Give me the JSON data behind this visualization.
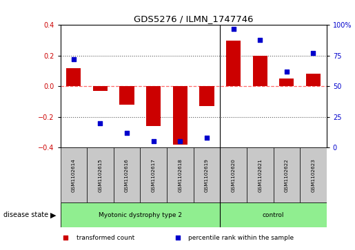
{
  "title": "GDS5276 / ILMN_1747746",
  "samples": [
    "GSM1102614",
    "GSM1102615",
    "GSM1102616",
    "GSM1102617",
    "GSM1102618",
    "GSM1102619",
    "GSM1102620",
    "GSM1102621",
    "GSM1102622",
    "GSM1102623"
  ],
  "transformed_count": [
    0.12,
    -0.03,
    -0.12,
    -0.26,
    -0.38,
    -0.13,
    0.3,
    0.2,
    0.05,
    0.08
  ],
  "percentile_rank": [
    72,
    20,
    12,
    5,
    5,
    8,
    97,
    88,
    62,
    77
  ],
  "ylim_left": [
    -0.4,
    0.4
  ],
  "ylim_right": [
    0,
    100
  ],
  "yticks_left": [
    -0.4,
    -0.2,
    0.0,
    0.2,
    0.4
  ],
  "yticks_right": [
    0,
    25,
    50,
    75,
    100
  ],
  "ytick_labels_right": [
    "0",
    "25",
    "50",
    "75",
    "100%"
  ],
  "bar_color": "#cc0000",
  "dot_color": "#0000cc",
  "groups": [
    {
      "label": "Myotonic dystrophy type 2",
      "start": 0,
      "end": 6,
      "color": "#90ee90"
    },
    {
      "label": "control",
      "start": 6,
      "end": 10,
      "color": "#90ee90"
    }
  ],
  "sep_index": 6,
  "group_bar_color": "#c8c8c8",
  "disease_state_label": "disease state",
  "legend_items": [
    {
      "color": "#cc0000",
      "label": "transformed count"
    },
    {
      "color": "#0000cc",
      "label": "percentile rank within the sample"
    }
  ],
  "zero_line_color": "#ff6666",
  "dotted_line_vals": [
    0.2,
    -0.2
  ],
  "dotted_line_color": "#555555",
  "background_color": "#ffffff",
  "fig_width": 5.15,
  "fig_height": 3.63,
  "dpi": 100
}
